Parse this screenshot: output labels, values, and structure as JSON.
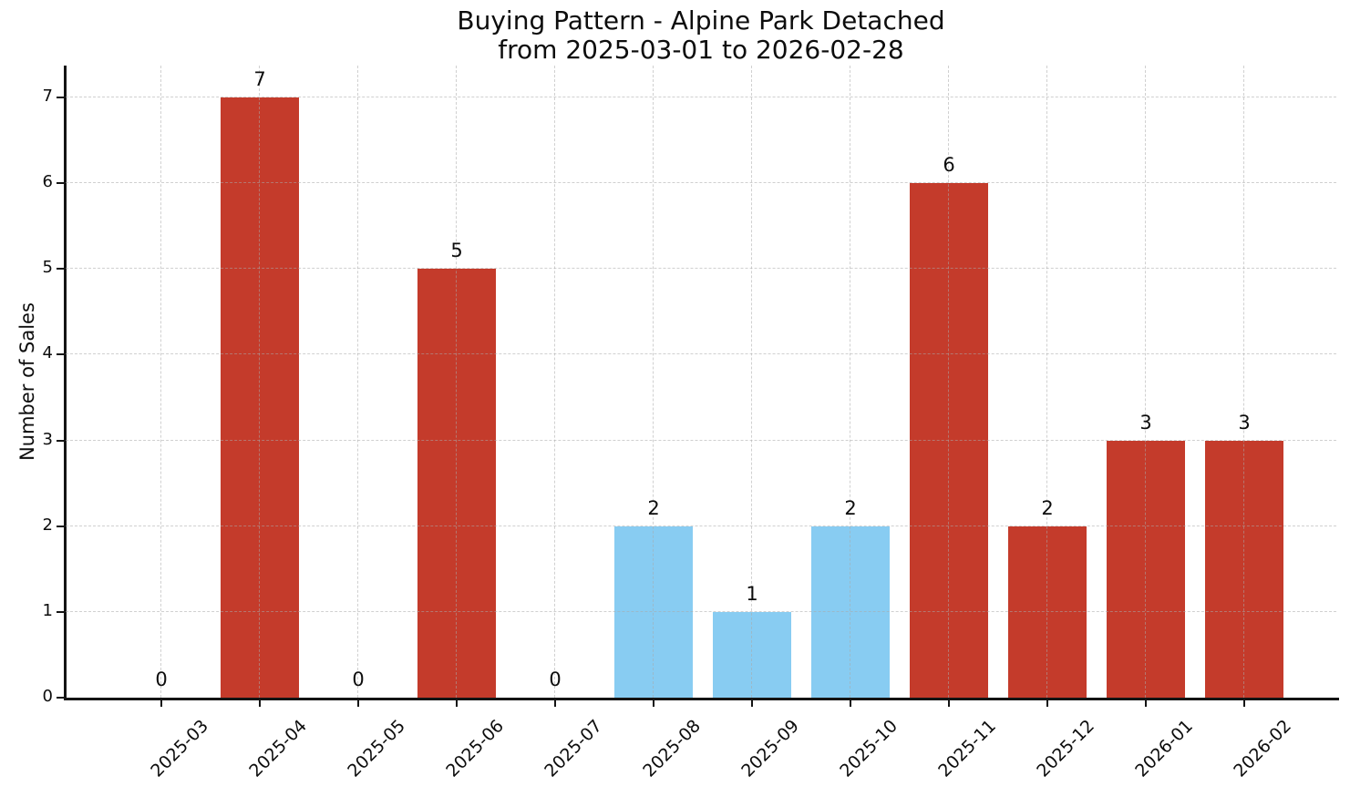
{
  "title": {
    "line1": "Buying Pattern - Alpine Park Detached",
    "line2": "from 2025-03-01 to 2026-02-28"
  },
  "chart_data": {
    "type": "bar",
    "title": "Buying Pattern - Alpine Park Detached\nfrom 2025-03-01 to 2026-02-28",
    "categories": [
      "2025-03",
      "2025-04",
      "2025-05",
      "2025-06",
      "2025-07",
      "2025-08",
      "2025-09",
      "2025-10",
      "2025-11",
      "2025-12",
      "2026-01",
      "2026-02"
    ],
    "values": [
      0,
      7,
      0,
      5,
      0,
      2,
      1,
      2,
      6,
      2,
      3,
      3
    ],
    "bar_colors": [
      "#c43b2b",
      "#c43b2b",
      "#c43b2b",
      "#c43b2b",
      "#c43b2b",
      "#88ccf2",
      "#88ccf2",
      "#88ccf2",
      "#c43b2b",
      "#c43b2b",
      "#c43b2b",
      "#c43b2b"
    ],
    "bar_value_labels": [
      "0",
      "7",
      "0",
      "5",
      "0",
      "2",
      "1",
      "2",
      "6",
      "2",
      "3",
      "3"
    ],
    "xlabel": "",
    "ylabel": "Number of Sales",
    "yticks": [
      0,
      1,
      2,
      3,
      4,
      5,
      6,
      7
    ],
    "ylim": [
      0,
      7.37
    ],
    "grid": true,
    "grid_style": "dashed",
    "legend": "none"
  },
  "colors": {
    "bar_red": "#c43b2b",
    "bar_blue": "#88ccf2",
    "grid": "#aaaaaa",
    "axis": "#141414",
    "text": "#0d0d0d",
    "background": "#ffffff"
  }
}
